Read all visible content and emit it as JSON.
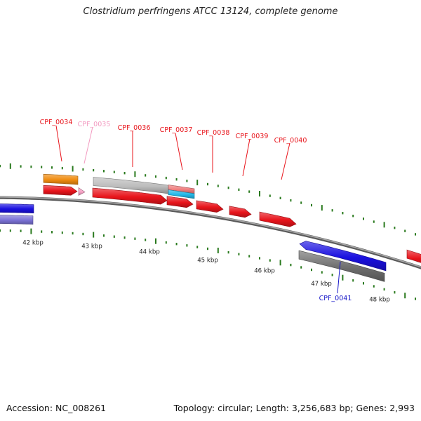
{
  "title": "Clostridium perfringens ATCC 13124, complete genome",
  "footer": {
    "accession": "Accession: NC_008261",
    "summary": "Topology: circular; Length: 3,256,683 bp; Genes: 2,993"
  },
  "colors": {
    "red": "#e8141b",
    "pink": "#f7a3c6",
    "orange": "#f08c10",
    "gray": "#bdbdbd",
    "salmon": "#ef7d7d",
    "cyan": "#22b8e8",
    "blue": "#1a10e0",
    "lavender": "#7b72d6",
    "darkgray": "#6e6e6e",
    "tick": "#2a7a1e",
    "backbone": "#8a8a8a",
    "label_blue": "#1414c8",
    "label_pink": "#f29ac0"
  },
  "kbp_labels": [
    "42 kbp",
    "43 kbp",
    "44 kbp",
    "45 kbp",
    "46 kbp",
    "47 kbp",
    "48 kbp"
  ],
  "gene_labels": [
    {
      "text": "CPF_0034",
      "color": "red"
    },
    {
      "text": "CPF_0035",
      "color": "label_pink"
    },
    {
      "text": "CPF_0036",
      "color": "red"
    },
    {
      "text": "CPF_0037",
      "color": "red"
    },
    {
      "text": "CPF_0038",
      "color": "red"
    },
    {
      "text": "CPF_0039",
      "color": "red"
    },
    {
      "text": "CPF_0040",
      "color": "red"
    },
    {
      "text": "CPF_0041",
      "color": "label_blue"
    }
  ]
}
